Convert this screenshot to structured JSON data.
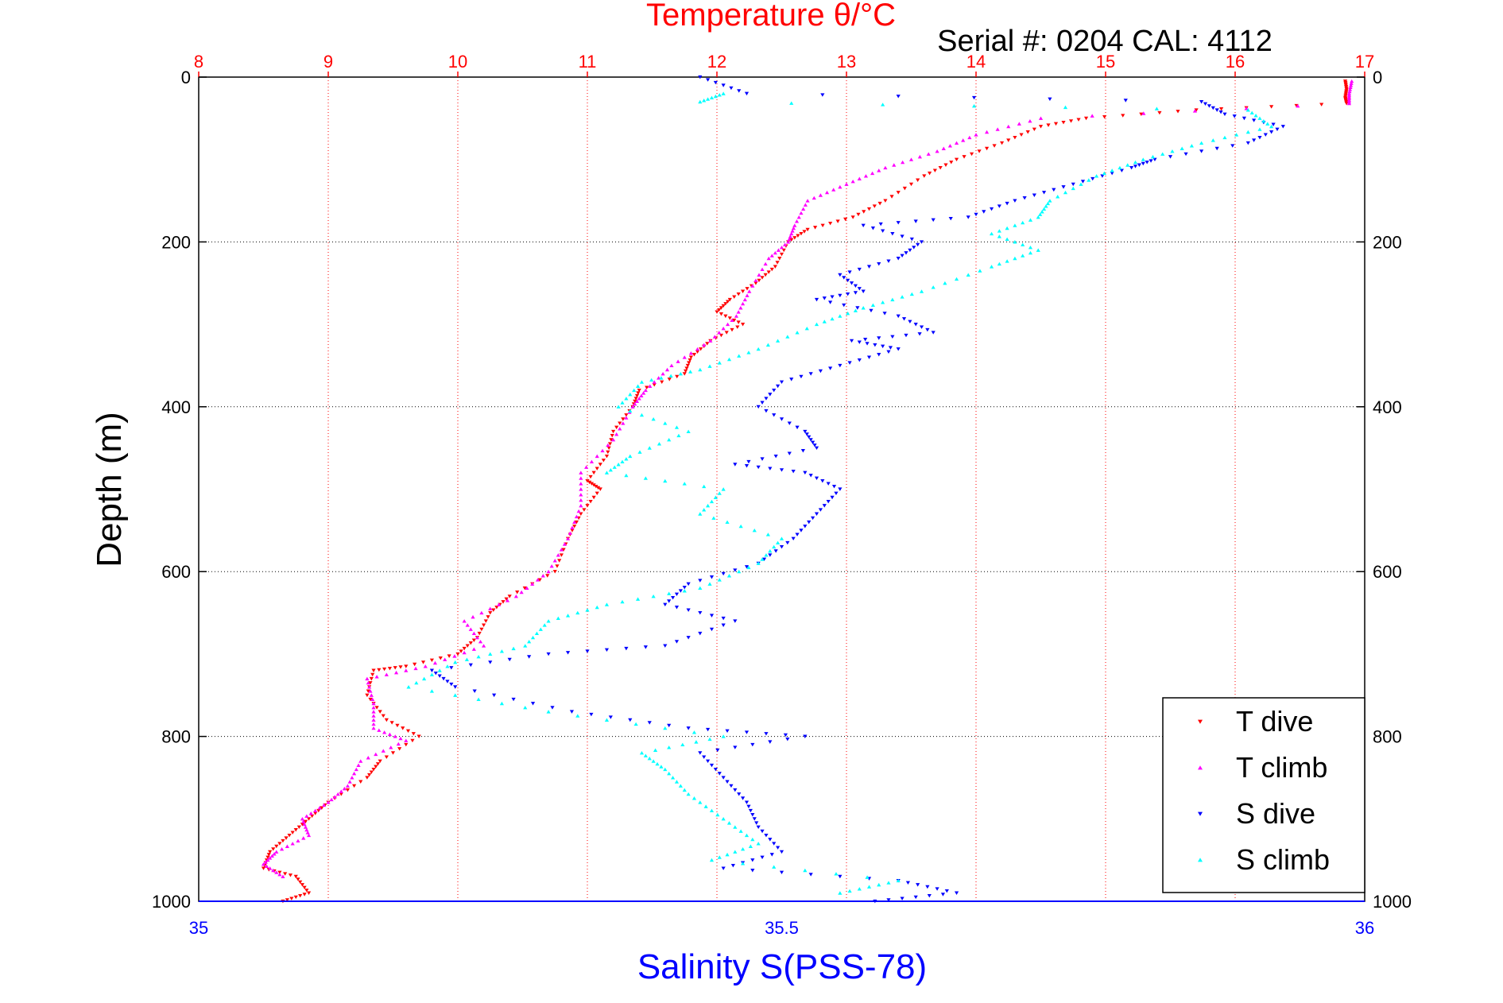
{
  "chart_data": {
    "type": "scatter",
    "title": "Temperature θ/°C",
    "subtitle": "Serial #: 0204  CAL: 4112",
    "xlabel": "Salinity S(PSS-78)",
    "ylabel": "Depth (m)",
    "top_axis": {
      "label": "Temperature θ/°C",
      "lim": [
        8,
        17
      ],
      "ticks": [
        "8",
        "9",
        "10",
        "11",
        "12",
        "13",
        "14",
        "15",
        "16",
        "17"
      ],
      "color": "#ff0000"
    },
    "bottom_axis": {
      "label": "Salinity S(PSS-78)",
      "lim": [
        35,
        36
      ],
      "ticks": [
        "35",
        "35.5",
        "36"
      ],
      "color": "#0000ff"
    },
    "y_axis": {
      "label": "Depth (m)",
      "lim": [
        0,
        1000
      ],
      "reversed": true,
      "ticks": [
        "0",
        "200",
        "400",
        "600",
        "800",
        "1000"
      ]
    },
    "grid": true,
    "legend_position": "bottom-right",
    "series": [
      {
        "name": "T dive",
        "axis": "temperature",
        "color": "#ff0000",
        "marker": "triangle-down",
        "points": [
          [
            16.85,
            5
          ],
          [
            16.86,
            15
          ],
          [
            16.85,
            25
          ],
          [
            16.86,
            32
          ],
          [
            15.7,
            40
          ],
          [
            14.85,
            50
          ],
          [
            14.5,
            60
          ],
          [
            14.2,
            80
          ],
          [
            13.85,
            100
          ],
          [
            13.6,
            120
          ],
          [
            13.3,
            150
          ],
          [
            13.05,
            170
          ],
          [
            12.7,
            185
          ],
          [
            12.55,
            200
          ],
          [
            12.45,
            230
          ],
          [
            12.3,
            250
          ],
          [
            12.1,
            270
          ],
          [
            12.0,
            285
          ],
          [
            12.2,
            300
          ],
          [
            11.95,
            320
          ],
          [
            11.8,
            340
          ],
          [
            11.75,
            360
          ],
          [
            11.4,
            380
          ],
          [
            11.35,
            400
          ],
          [
            11.2,
            430
          ],
          [
            11.15,
            460
          ],
          [
            11.0,
            490
          ],
          [
            11.1,
            500
          ],
          [
            10.95,
            530
          ],
          [
            10.85,
            560
          ],
          [
            10.75,
            600
          ],
          [
            10.4,
            630
          ],
          [
            10.25,
            650
          ],
          [
            10.15,
            680
          ],
          [
            10.0,
            700
          ],
          [
            9.6,
            715
          ],
          [
            9.35,
            720
          ],
          [
            9.3,
            750
          ],
          [
            9.45,
            780
          ],
          [
            9.7,
            800
          ],
          [
            9.4,
            830
          ],
          [
            9.3,
            850
          ],
          [
            9.0,
            880
          ],
          [
            8.85,
            900
          ],
          [
            8.7,
            920
          ],
          [
            8.55,
            940
          ],
          [
            8.5,
            960
          ],
          [
            8.75,
            970
          ],
          [
            8.85,
            990
          ],
          [
            8.65,
            1000
          ]
        ]
      },
      {
        "name": "T climb",
        "axis": "temperature",
        "color": "#ff00ff",
        "marker": "triangle-up",
        "points": [
          [
            16.9,
            5
          ],
          [
            16.88,
            20
          ],
          [
            16.88,
            32
          ],
          [
            14.5,
            50
          ],
          [
            14.0,
            70
          ],
          [
            13.7,
            90
          ],
          [
            13.3,
            110
          ],
          [
            13.0,
            130
          ],
          [
            12.7,
            150
          ],
          [
            12.6,
            180
          ],
          [
            12.55,
            200
          ],
          [
            12.4,
            220
          ],
          [
            12.25,
            260
          ],
          [
            12.15,
            290
          ],
          [
            11.95,
            320
          ],
          [
            11.65,
            350
          ],
          [
            11.45,
            380
          ],
          [
            11.35,
            400
          ],
          [
            11.2,
            440
          ],
          [
            10.95,
            480
          ],
          [
            10.95,
            520
          ],
          [
            10.85,
            560
          ],
          [
            10.7,
            600
          ],
          [
            10.45,
            630
          ],
          [
            10.05,
            660
          ],
          [
            10.2,
            690
          ],
          [
            9.75,
            715
          ],
          [
            9.3,
            730
          ],
          [
            9.35,
            760
          ],
          [
            9.35,
            790
          ],
          [
            9.6,
            805
          ],
          [
            9.25,
            830
          ],
          [
            9.15,
            860
          ],
          [
            9.0,
            880
          ],
          [
            8.8,
            900
          ],
          [
            8.85,
            920
          ],
          [
            8.6,
            940
          ],
          [
            8.5,
            955
          ],
          [
            8.65,
            970
          ]
        ]
      },
      {
        "name": "S dive",
        "axis": "salinity",
        "color": "#0000ff",
        "marker": "triangle-down",
        "points": [
          [
            35.43,
            0
          ],
          [
            35.47,
            20
          ],
          [
            35.86,
            30
          ],
          [
            35.88,
            45
          ],
          [
            35.93,
            60
          ],
          [
            35.9,
            80
          ],
          [
            35.82,
            100
          ],
          [
            35.8,
            110
          ],
          [
            35.75,
            130
          ],
          [
            35.7,
            150
          ],
          [
            35.66,
            170
          ],
          [
            35.57,
            180
          ],
          [
            35.62,
            200
          ],
          [
            35.6,
            220
          ],
          [
            35.55,
            240
          ],
          [
            35.57,
            260
          ],
          [
            35.53,
            270
          ],
          [
            35.6,
            290
          ],
          [
            35.63,
            310
          ],
          [
            35.56,
            320
          ],
          [
            35.6,
            330
          ],
          [
            35.55,
            350
          ],
          [
            35.5,
            370
          ],
          [
            35.48,
            400
          ],
          [
            35.52,
            430
          ],
          [
            35.53,
            450
          ],
          [
            35.46,
            470
          ],
          [
            35.52,
            480
          ],
          [
            35.55,
            500
          ],
          [
            35.53,
            530
          ],
          [
            35.51,
            560
          ],
          [
            35.48,
            590
          ],
          [
            35.42,
            615
          ],
          [
            35.4,
            640
          ],
          [
            35.46,
            660
          ],
          [
            35.4,
            690
          ],
          [
            35.3,
            700
          ],
          [
            35.2,
            720
          ],
          [
            35.22,
            740
          ],
          [
            35.32,
            770
          ],
          [
            35.42,
            790
          ],
          [
            35.52,
            800
          ],
          [
            35.43,
            820
          ],
          [
            35.45,
            850
          ],
          [
            35.47,
            880
          ],
          [
            35.48,
            910
          ],
          [
            35.5,
            940
          ],
          [
            35.45,
            960
          ],
          [
            35.6,
            975
          ],
          [
            35.65,
            990
          ],
          [
            35.58,
            1000
          ]
        ]
      },
      {
        "name": "S climb",
        "axis": "salinity",
        "color": "#00ffff",
        "marker": "triangle-up",
        "points": [
          [
            35.45,
            20
          ],
          [
            35.43,
            30
          ],
          [
            35.9,
            40
          ],
          [
            35.92,
            60
          ],
          [
            35.86,
            80
          ],
          [
            35.81,
            100
          ],
          [
            35.77,
            120
          ],
          [
            35.73,
            150
          ],
          [
            35.72,
            170
          ],
          [
            35.68,
            190
          ],
          [
            35.72,
            210
          ],
          [
            35.68,
            230
          ],
          [
            35.62,
            260
          ],
          [
            35.57,
            280
          ],
          [
            35.53,
            300
          ],
          [
            35.48,
            330
          ],
          [
            35.43,
            355
          ],
          [
            35.38,
            370
          ],
          [
            35.36,
            400
          ],
          [
            35.42,
            430
          ],
          [
            35.37,
            460
          ],
          [
            35.35,
            480
          ],
          [
            35.45,
            500
          ],
          [
            35.43,
            530
          ],
          [
            35.5,
            560
          ],
          [
            35.48,
            590
          ],
          [
            35.43,
            620
          ],
          [
            35.35,
            640
          ],
          [
            35.3,
            660
          ],
          [
            35.28,
            690
          ],
          [
            35.22,
            710
          ],
          [
            35.18,
            740
          ],
          [
            35.3,
            770
          ],
          [
            35.45,
            800
          ],
          [
            35.38,
            820
          ],
          [
            35.4,
            840
          ],
          [
            35.42,
            870
          ],
          [
            35.45,
            900
          ],
          [
            35.48,
            930
          ],
          [
            35.44,
            950
          ],
          [
            35.6,
            975
          ],
          [
            35.55,
            990
          ]
        ]
      }
    ]
  }
}
